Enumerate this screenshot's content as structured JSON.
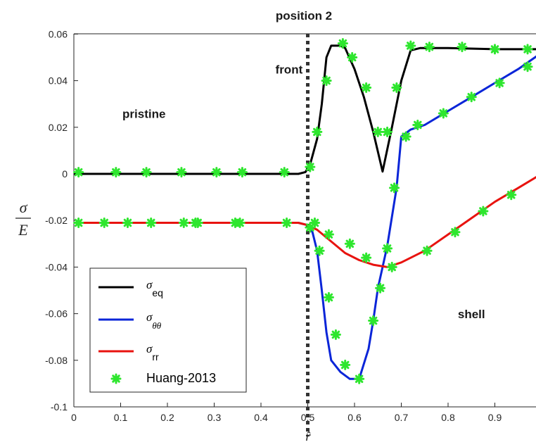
{
  "chart_data": {
    "type": "line",
    "title": "position 2",
    "xlabel": "r̂",
    "ylabel_numerator": "σ",
    "ylabel_denominator": "E",
    "xlim": [
      0,
      1
    ],
    "ylim": [
      -0.1,
      0.06
    ],
    "grid": false,
    "legend_position": "bottom-left",
    "x_ticks": [
      "0",
      "0.1",
      "0.2",
      "0.3",
      "0.4",
      "0.5",
      "0.6",
      "0.7",
      "0.8",
      "0.9"
    ],
    "y_ticks": [
      "0.06",
      "0.04",
      "0.02",
      "0",
      "-0.02",
      "-0.04",
      "-0.06",
      "-0.08",
      "-0.1"
    ],
    "front_line_x": 0.5,
    "annotations": [
      {
        "text": "front",
        "x": 0.46,
        "y": 0.043
      },
      {
        "text": "pristine",
        "x": 0.15,
        "y": 0.024
      },
      {
        "text": "shell",
        "x": 0.85,
        "y": -0.062
      }
    ],
    "series": [
      {
        "name": "σ_eq",
        "name_base": "σ",
        "name_sub": "eq",
        "color": "#000000",
        "x": [
          0,
          0.48,
          0.495,
          0.505,
          0.52,
          0.53,
          0.54,
          0.55,
          0.57,
          0.58,
          0.6,
          0.62,
          0.64,
          0.66,
          0.68,
          0.7,
          0.72,
          0.74,
          0.8,
          0.9,
          1.0
        ],
        "y": [
          0,
          0,
          0.0008,
          0.004,
          0.015,
          0.03,
          0.05,
          0.055,
          0.055,
          0.054,
          0.045,
          0.033,
          0.018,
          0.001,
          0.02,
          0.04,
          0.053,
          0.054,
          0.054,
          0.0535,
          0.0535
        ]
      },
      {
        "name": "σ_θθ",
        "name_base": "σ",
        "name_sub": "θθ",
        "color": "#0a25d8",
        "x": [
          0,
          0.48,
          0.5,
          0.51,
          0.52,
          0.53,
          0.54,
          0.55,
          0.57,
          0.59,
          0.61,
          0.63,
          0.64,
          0.65,
          0.67,
          0.69,
          0.7,
          0.72,
          0.75,
          0.8,
          0.85,
          0.9,
          0.95,
          1.0
        ],
        "y": [
          -0.021,
          -0.021,
          -0.022,
          -0.025,
          -0.033,
          -0.05,
          -0.068,
          -0.08,
          -0.085,
          -0.088,
          -0.088,
          -0.075,
          -0.063,
          -0.049,
          -0.031,
          -0.006,
          0.016,
          0.019,
          0.021,
          0.027,
          0.033,
          0.039,
          0.045,
          0.052
        ]
      },
      {
        "name": "σ_rr",
        "name_base": "σ",
        "name_sub": "rr",
        "color": "#e8130f",
        "x": [
          0,
          0.48,
          0.5,
          0.52,
          0.55,
          0.58,
          0.61,
          0.64,
          0.67,
          0.7,
          0.75,
          0.8,
          0.85,
          0.9,
          0.95,
          1.0
        ],
        "y": [
          -0.021,
          -0.021,
          -0.022,
          -0.024,
          -0.029,
          -0.034,
          -0.037,
          -0.039,
          -0.04,
          -0.038,
          -0.033,
          -0.026,
          -0.019,
          -0.012,
          -0.006,
          0.0
        ]
      },
      {
        "name": "Huang-2013",
        "color": "#2ee62e",
        "marker": "asterisk",
        "points": [
          [
            0.01,
            0.0007
          ],
          [
            0.09,
            0.0007
          ],
          [
            0.155,
            0.0007
          ],
          [
            0.23,
            0.0007
          ],
          [
            0.305,
            0.0007
          ],
          [
            0.36,
            0.0007
          ],
          [
            0.45,
            0.0007
          ],
          [
            0.505,
            0.003
          ],
          [
            0.52,
            0.018
          ],
          [
            0.54,
            0.04
          ],
          [
            0.575,
            0.056
          ],
          [
            0.595,
            0.05
          ],
          [
            0.625,
            0.037
          ],
          [
            0.65,
            0.018
          ],
          [
            0.67,
            0.018
          ],
          [
            0.69,
            0.037
          ],
          [
            0.72,
            0.055
          ],
          [
            0.76,
            0.0545
          ],
          [
            0.83,
            0.0545
          ],
          [
            0.9,
            0.0535
          ],
          [
            0.97,
            0.0535
          ],
          [
            0.01,
            -0.021
          ],
          [
            0.065,
            -0.021
          ],
          [
            0.115,
            -0.021
          ],
          [
            0.165,
            -0.021
          ],
          [
            0.235,
            -0.021
          ],
          [
            0.26,
            -0.021
          ],
          [
            0.265,
            -0.021
          ],
          [
            0.345,
            -0.021
          ],
          [
            0.355,
            -0.021
          ],
          [
            0.455,
            -0.021
          ],
          [
            0.505,
            -0.023
          ],
          [
            0.515,
            -0.021
          ],
          [
            0.525,
            -0.033
          ],
          [
            0.545,
            -0.053
          ],
          [
            0.56,
            -0.069
          ],
          [
            0.58,
            -0.082
          ],
          [
            0.61,
            -0.088
          ],
          [
            0.64,
            -0.063
          ],
          [
            0.655,
            -0.049
          ],
          [
            0.67,
            -0.032
          ],
          [
            0.685,
            -0.006
          ],
          [
            0.71,
            0.016
          ],
          [
            0.735,
            0.021
          ],
          [
            0.79,
            0.026
          ],
          [
            0.85,
            0.033
          ],
          [
            0.91,
            0.039
          ],
          [
            0.97,
            0.046
          ],
          [
            1.02,
            0.055
          ],
          [
            0.545,
            -0.026
          ],
          [
            0.59,
            -0.03
          ],
          [
            0.625,
            -0.036
          ],
          [
            0.68,
            -0.04
          ],
          [
            0.755,
            -0.033
          ],
          [
            0.815,
            -0.025
          ],
          [
            0.875,
            -0.016
          ],
          [
            0.935,
            -0.009
          ],
          [
            0.99,
            -0.001
          ]
        ]
      }
    ]
  }
}
